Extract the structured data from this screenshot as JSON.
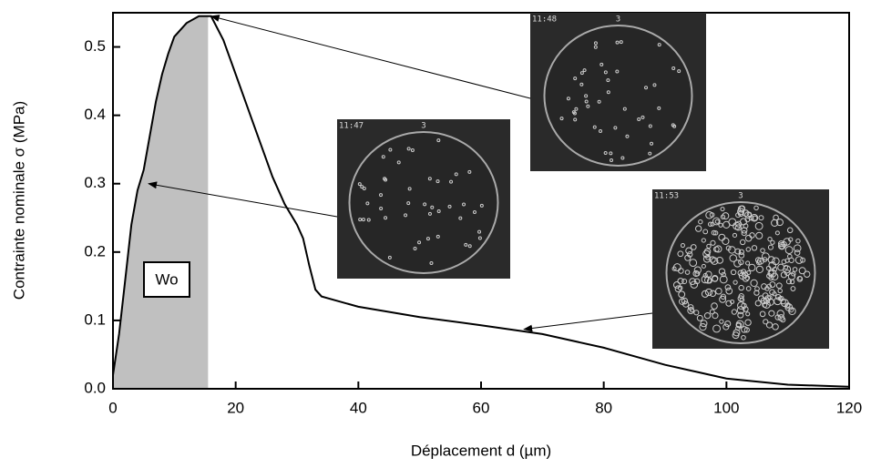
{
  "chart_data": {
    "type": "line",
    "x_label": "Déplacement d (µm)",
    "y_label": "Contrainte nominale σ (MPa)",
    "x": [
      0,
      1,
      2,
      3,
      4,
      5,
      6,
      7,
      8,
      9,
      10,
      12,
      14,
      16,
      18,
      20,
      22,
      24,
      26,
      28,
      30,
      31,
      32,
      33,
      34,
      40,
      50,
      60,
      70,
      80,
      90,
      100,
      110,
      120
    ],
    "values": [
      0.02,
      0.08,
      0.16,
      0.24,
      0.29,
      0.32,
      0.37,
      0.42,
      0.46,
      0.49,
      0.515,
      0.535,
      0.545,
      0.545,
      0.51,
      0.46,
      0.41,
      0.36,
      0.31,
      0.27,
      0.24,
      0.22,
      0.18,
      0.145,
      0.135,
      0.12,
      0.105,
      0.093,
      0.08,
      0.06,
      0.035,
      0.015,
      0.006,
      0.003
    ],
    "color": "#000000",
    "xlim": [
      0,
      120
    ],
    "xticks": [
      0,
      20,
      40,
      60,
      80,
      100,
      120
    ],
    "ylim": [
      0,
      0.55
    ],
    "yticks": [
      {
        "value": 0,
        "label": "0.0"
      },
      0.1,
      0.2,
      0.3,
      0.4,
      0.5
    ],
    "shaded_region": {
      "label": "Wo",
      "x_end": 15.5,
      "color": "#c0c0c0"
    },
    "insets": [
      {
        "time": "11:48",
        "number": "3",
        "target_x": 16,
        "target_y": 0.545
      },
      {
        "time": "11:47",
        "number": "3",
        "target_x": 5.8,
        "target_y": 0.3
      },
      {
        "time": "11:53",
        "number": "3",
        "target_x": 67,
        "target_y": 0.087
      }
    ]
  }
}
